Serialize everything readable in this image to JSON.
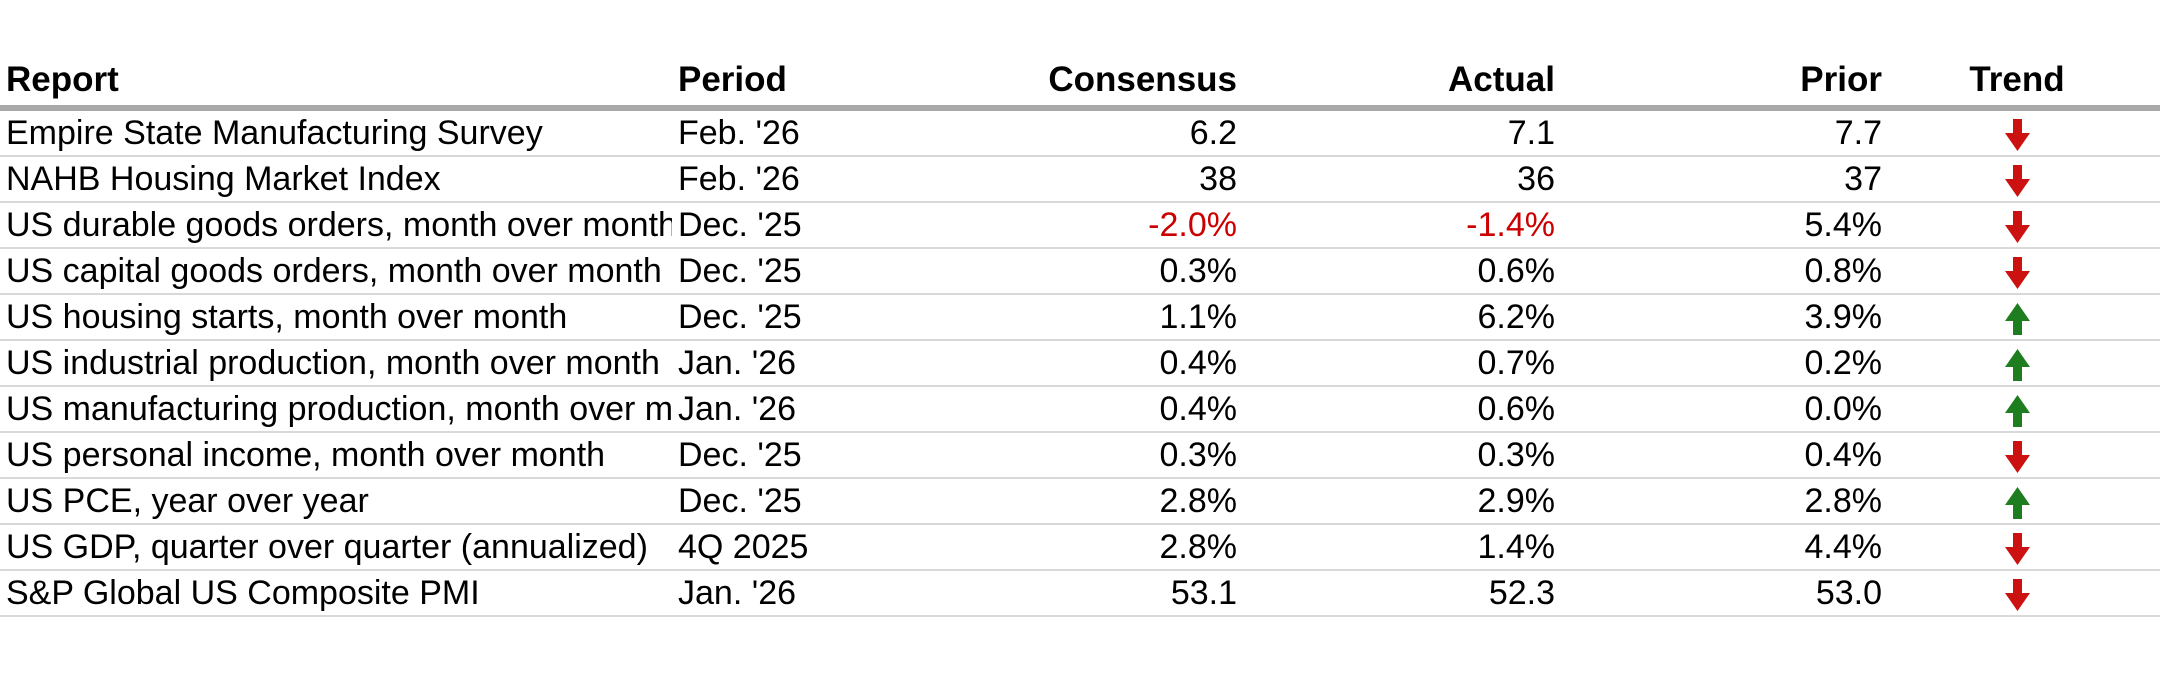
{
  "colors": {
    "text": "#000000",
    "negative_value": "#cc0000",
    "trend_up": "#1e7d1e",
    "trend_down": "#cc1111",
    "header_rule": "#a9a9a9",
    "row_rule": "#d9d9d9",
    "background": "#ffffff"
  },
  "table": {
    "columns": [
      {
        "key": "report",
        "label": "Report",
        "align": "left"
      },
      {
        "key": "period",
        "label": "Period",
        "align": "left"
      },
      {
        "key": "consensus",
        "label": "Consensus",
        "align": "right"
      },
      {
        "key": "actual",
        "label": "Actual",
        "align": "right"
      },
      {
        "key": "prior",
        "label": "Prior",
        "align": "right"
      },
      {
        "key": "trend",
        "label": "Trend",
        "align": "center"
      }
    ],
    "rows": [
      {
        "report": "Empire State Manufacturing Survey",
        "period": "Feb. '26",
        "consensus": "6.2",
        "actual": "7.1",
        "prior": "7.7",
        "trend": "down"
      },
      {
        "report": "NAHB Housing Market Index",
        "period": "Feb. '26",
        "consensus": "38",
        "actual": "36",
        "prior": "37",
        "trend": "down"
      },
      {
        "report": "US durable goods orders, month over month",
        "period": "Dec. '25",
        "consensus": "-2.0%",
        "actual": "-1.4%",
        "prior": "5.4%",
        "trend": "down"
      },
      {
        "report": "US capital goods orders, month over month",
        "period": "Dec. '25",
        "consensus": "0.3%",
        "actual": "0.6%",
        "prior": "0.8%",
        "trend": "down"
      },
      {
        "report": "US housing starts, month over month",
        "period": "Dec. '25",
        "consensus": "1.1%",
        "actual": "6.2%",
        "prior": "3.9%",
        "trend": "up"
      },
      {
        "report": "US industrial production, month over month",
        "period": "Jan. '26",
        "consensus": "0.4%",
        "actual": "0.7%",
        "prior": "0.2%",
        "trend": "up"
      },
      {
        "report": "US manufacturing production, month over month",
        "period": "Jan. '26",
        "consensus": "0.4%",
        "actual": "0.6%",
        "prior": "0.0%",
        "trend": "up"
      },
      {
        "report": "US personal income, month over month",
        "period": "Dec. '25",
        "consensus": "0.3%",
        "actual": "0.3%",
        "prior": "0.4%",
        "trend": "down"
      },
      {
        "report": "US PCE, year over year",
        "period": "Dec. '25",
        "consensus": "2.8%",
        "actual": "2.9%",
        "prior": "2.8%",
        "trend": "up"
      },
      {
        "report": "US GDP, quarter over quarter (annualized)",
        "period": "4Q 2025",
        "consensus": "2.8%",
        "actual": "1.4%",
        "prior": "4.4%",
        "trend": "down"
      },
      {
        "report": "S&P Global US Composite PMI",
        "period": "Jan. '26",
        "consensus": "53.1",
        "actual": "52.3",
        "prior": "53.0",
        "trend": "down"
      }
    ]
  },
  "chart_data": {
    "type": "table",
    "title": "",
    "columns": [
      "Report",
      "Period",
      "Consensus",
      "Actual",
      "Prior",
      "Trend"
    ],
    "rows": [
      [
        "Empire State Manufacturing Survey",
        "Feb. '26",
        "6.2",
        "7.1",
        "7.7",
        "down"
      ],
      [
        "NAHB Housing Market Index",
        "Feb. '26",
        "38",
        "36",
        "37",
        "down"
      ],
      [
        "US durable goods orders, month over month",
        "Dec. '25",
        "-2.0%",
        "-1.4%",
        "5.4%",
        "down"
      ],
      [
        "US capital goods orders, month over month",
        "Dec. '25",
        "0.3%",
        "0.6%",
        "0.8%",
        "down"
      ],
      [
        "US housing starts, month over month",
        "Dec. '25",
        "1.1%",
        "6.2%",
        "3.9%",
        "up"
      ],
      [
        "US industrial production, month over month",
        "Jan. '26",
        "0.4%",
        "0.7%",
        "0.2%",
        "up"
      ],
      [
        "US manufacturing production, month over month",
        "Jan. '26",
        "0.4%",
        "0.6%",
        "0.0%",
        "up"
      ],
      [
        "US personal income, month over month",
        "Dec. '25",
        "0.3%",
        "0.3%",
        "0.4%",
        "down"
      ],
      [
        "US PCE, year over year",
        "Dec. '25",
        "2.8%",
        "2.9%",
        "2.8%",
        "up"
      ],
      [
        "US GDP, quarter over quarter (annualized)",
        "4Q 2025",
        "2.8%",
        "1.4%",
        "4.4%",
        "down"
      ],
      [
        "S&P Global US Composite PMI",
        "Jan. '26",
        "53.1",
        "52.3",
        "53.0",
        "down"
      ]
    ],
    "notes": "Negative Consensus/Actual values rendered in red; Trend column shows red down-arrow or green up-arrow"
  }
}
